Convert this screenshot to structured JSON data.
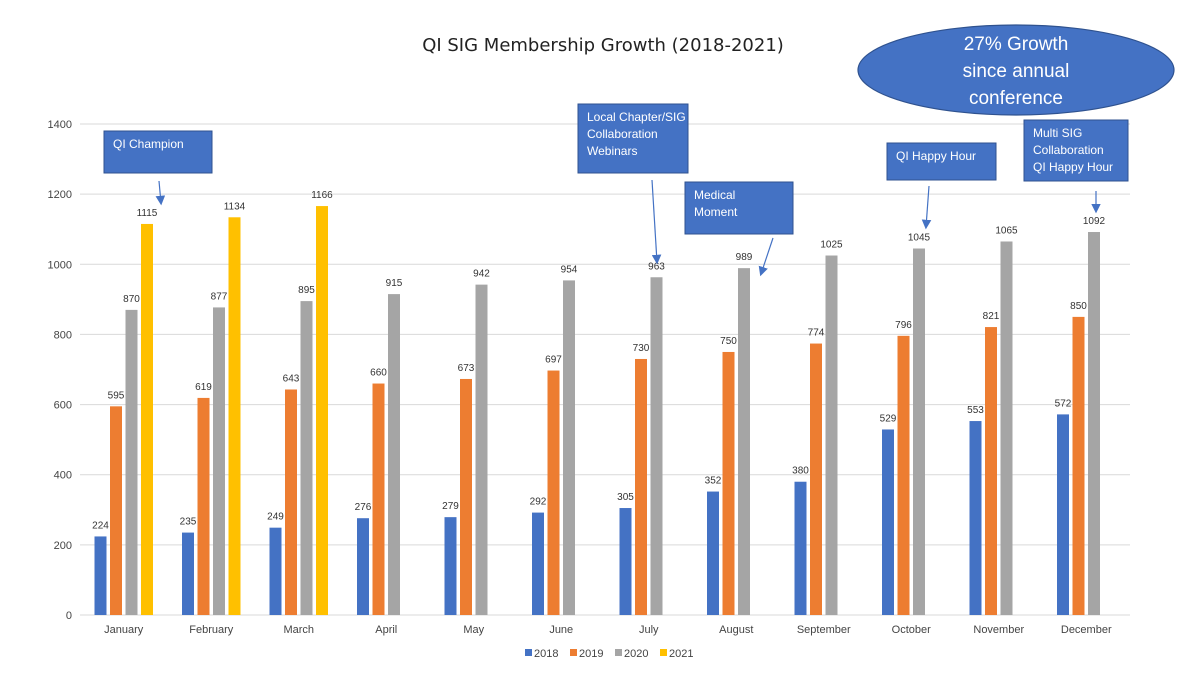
{
  "chart_data": {
    "type": "bar",
    "title": "QI SIG Membership Growth (2018-2021)",
    "categories": [
      "January",
      "February",
      "March",
      "April",
      "May",
      "June",
      "July",
      "August",
      "September",
      "October",
      "November",
      "December"
    ],
    "ylim": [
      0,
      1400
    ],
    "yticks": [
      0,
      200,
      400,
      600,
      800,
      1000,
      1200,
      1400
    ],
    "grid": true,
    "legend_position": "bottom",
    "series": [
      {
        "name": "2018",
        "color": "#4472C4",
        "values": [
          224,
          235,
          249,
          276,
          279,
          292,
          305,
          352,
          380,
          529,
          553,
          572
        ]
      },
      {
        "name": "2019",
        "color": "#ED7D31",
        "values": [
          595,
          619,
          643,
          660,
          673,
          697,
          730,
          750,
          774,
          796,
          821,
          850
        ]
      },
      {
        "name": "2020",
        "color": "#A5A5A5",
        "values": [
          870,
          877,
          895,
          915,
          942,
          954,
          963,
          989,
          1025,
          1045,
          1065,
          1092
        ]
      },
      {
        "name": "2021",
        "color": "#FFC000",
        "values": [
          1115,
          1134,
          1166,
          null,
          null,
          null,
          null,
          null,
          null,
          null,
          null,
          null
        ]
      }
    ],
    "annotations": [
      {
        "lines": [
          "QI Champion"
        ],
        "month": "January"
      },
      {
        "lines": [
          "Local Chapter/SIG",
          "Collaboration",
          "Webinars"
        ],
        "month": "July"
      },
      {
        "lines": [
          "Medical",
          "Moment"
        ],
        "month": "August"
      },
      {
        "lines": [
          "QI Happy Hour"
        ],
        "month": "October"
      },
      {
        "lines": [
          "Multi SIG",
          "Collaboration",
          "QI Happy Hour"
        ],
        "month": "December"
      }
    ],
    "callout": {
      "lines": [
        "27% Growth",
        "since annual",
        "conference"
      ],
      "shape": "ellipse",
      "color": "#4472C4"
    }
  }
}
